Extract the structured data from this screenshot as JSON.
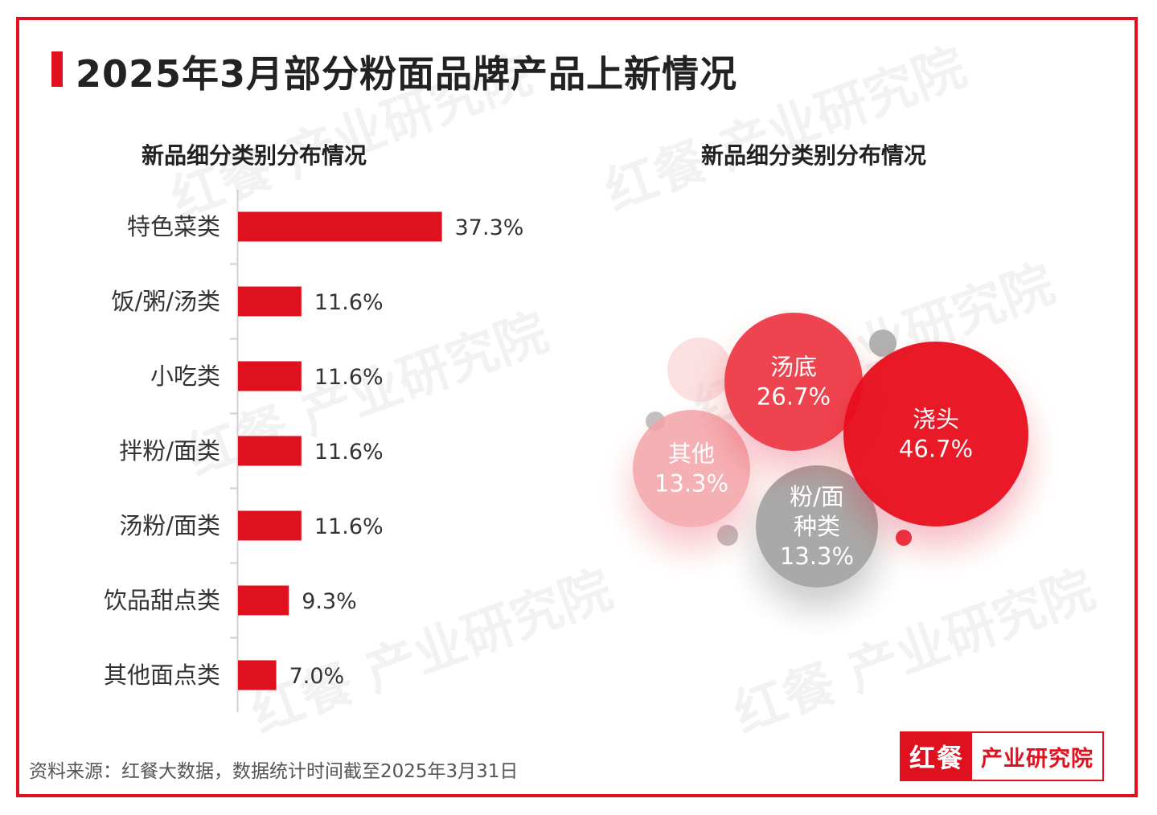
{
  "title": "2025年3月部分粉面品牌产品上新情况",
  "source": "资料来源：红餐大数据，数据统计时间截至2025年3月31日",
  "logo": {
    "left": "红餐",
    "right": "产业研究院"
  },
  "watermark": "红餐 产业研究院",
  "colors": {
    "accent": "#e0111f",
    "grey": "#9a9a9a"
  },
  "chart_data": [
    {
      "type": "bar",
      "orientation": "horizontal",
      "title": "新品细分类别分布情况",
      "categories": [
        "特色菜类",
        "饭/粥/汤类",
        "小吃类",
        "拌粉/面类",
        "汤粉/面类",
        "饮品甜点类",
        "其他面点类"
      ],
      "values": [
        37.3,
        11.6,
        11.6,
        11.6,
        11.6,
        9.3,
        7.0
      ],
      "labels": [
        "37.3%",
        "11.6%",
        "11.6%",
        "11.6%",
        "11.6%",
        "9.3%",
        "7.0%"
      ],
      "color": "#e0111f"
    },
    {
      "type": "bubble",
      "title": "新品细分类别分布情况",
      "items": [
        {
          "name": "浇头",
          "value": 46.7,
          "label": "46.7%",
          "color": "#e8111f"
        },
        {
          "name": "汤底",
          "value": 26.7,
          "label": "26.7%",
          "color": "#ee3a46"
        },
        {
          "name": "其他",
          "value": 13.3,
          "label": "13.3%",
          "color": "#f4a3a8"
        },
        {
          "name": "粉/面\n种类",
          "value": 13.3,
          "label": "13.3%",
          "color": "#a5a5a5"
        }
      ]
    }
  ]
}
